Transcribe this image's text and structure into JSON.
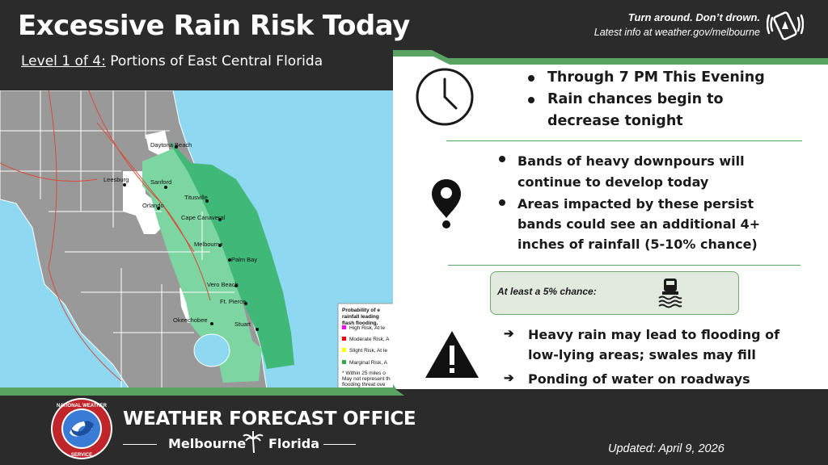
{
  "header": {
    "title": "Excessive Rain Risk Today",
    "level": "Level 1 of 4:",
    "region": "Portions of East Central Florida",
    "slogan": "Turn around. Don’t drown.",
    "latest": "Latest info at weather.gov/melbourne",
    "icon": "phone-alert-icon"
  },
  "map": {
    "cities": [
      "Daytona Beach",
      "Leesburg",
      "Sanford",
      "Titusville",
      "Orlando",
      "Cape Canaveral",
      "Melbourne",
      "Palm Bay",
      "Vero Beach",
      "Ft. Pierce",
      "Okeechobee",
      "Stuart"
    ],
    "legend": {
      "title_lines": [
        "Probability of e",
        "rainfall leading",
        "flash flooding."
      ],
      "items": [
        {
          "label": "High Risk, At le",
          "color": "#ff00ff"
        },
        {
          "label": "Moderate Risk, A",
          "color": "#ff0000"
        },
        {
          "label": "Slight Risk, At le",
          "color": "#ffff00"
        },
        {
          "label": "Marginal Risk, A",
          "color": "#33aa44"
        }
      ],
      "notes": [
        "* Within 25 miles o",
        "May not represent th",
        "flooding threat ove"
      ]
    },
    "colors": {
      "land": "#999999",
      "risk": "#7dd6a2",
      "water": "#8fd8f2",
      "outer": "#3fb878"
    }
  },
  "timing": {
    "icon": "clock-icon",
    "bullets": [
      "Through 7 PM This Evening",
      "Rain chances begin to",
      "decrease tonight"
    ]
  },
  "impacts": {
    "icon": "map-pin-icon",
    "bullets": [
      "Bands of heavy downpours will",
      "continue to develop today",
      "Areas impacted by these persist",
      "bands could see an additional 4+",
      "inches of rainfall (5-10% chance)"
    ]
  },
  "chance": {
    "label": "At least a 5% chance:",
    "icon": "flooded-car-icon"
  },
  "hazards": {
    "icon": "warning-icon",
    "bullets": [
      "Heavy rain may lead to flooding of",
      "low-lying areas; swales may fill",
      "Ponding of water on roadways"
    ]
  },
  "footer": {
    "office": "WEATHER FORECAST OFFICE",
    "city": "Melbourne",
    "state": "Florida",
    "updated": "Updated: April 9, 2026",
    "logo_top": "NATIONAL WEATHER",
    "logo_bottom": "SERVICE"
  },
  "accent": "#5aa463"
}
